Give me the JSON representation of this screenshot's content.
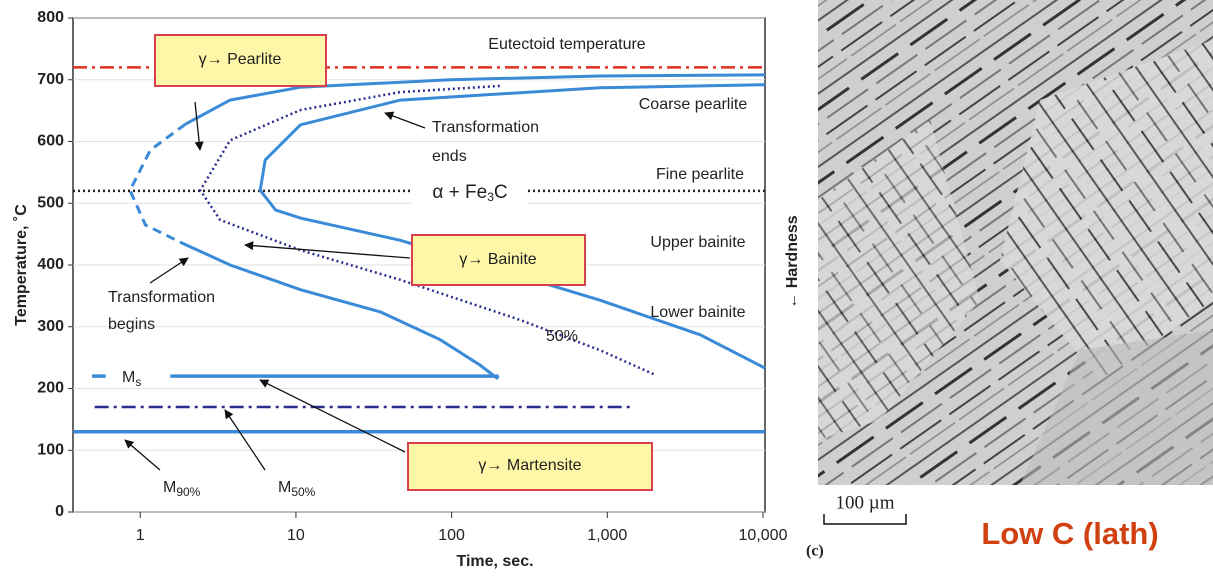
{
  "chart_data": {
    "type": "line",
    "x_log": true,
    "grid": true,
    "x_label": "Time, sec.",
    "y_label": "Temperature, ˚C",
    "xlim": [
      0.37,
      10300
    ],
    "ylim": [
      0,
      800
    ],
    "xticks": [
      1,
      10,
      100,
      {
        "value": 1000,
        "label": "1,000"
      },
      {
        "value": 10000,
        "label": "10,000"
      }
    ],
    "yticks": [
      0,
      100,
      200,
      300,
      400,
      500,
      600,
      700,
      800
    ],
    "series": [
      {
        "color": "#e03020",
        "style": "dashdot",
        "x": [
          0.37,
          10300
        ],
        "values": [
          720,
          720
        ]
      },
      {
        "color": "#222222",
        "style": "dotted",
        "x": [
          0.37,
          10300
        ],
        "values": [
          520,
          520
        ]
      },
      {
        "color": "#3a8ad8",
        "style": "solid",
        "x": [
          1.95,
          3.78,
          10.7,
          98,
          897,
          10300
        ],
        "values": [
          628,
          667,
          688,
          700,
          706,
          708
        ]
      },
      {
        "color": "#3a8ad8",
        "style": "dashed",
        "x": [
          1.95,
          1.16,
          0.86,
          1.08,
          1.81
        ],
        "values": [
          628,
          586,
          521,
          465,
          437
        ]
      },
      {
        "color": "#3a8ad8",
        "style": "solid",
        "x": [
          1.81,
          3.78,
          10.7,
          34.9,
          84.5,
          152,
          195,
          200
        ],
        "values": [
          437,
          400,
          360,
          324,
          279,
          238,
          217,
          220
        ]
      },
      {
        "color": "#3a8ad8",
        "style": "solid",
        "x": [
          10300,
          897,
          46.8,
          10.7,
          6.35,
          5.9,
          7.4,
          10.7,
          46.8,
          204,
          897,
          3950,
          10300
        ],
        "values": [
          692,
          687,
          667,
          627,
          570,
          521,
          489,
          476,
          440,
          392,
          343,
          287,
          233
        ]
      },
      {
        "color": "#2a2f8f",
        "style": "dotted",
        "x": [
          204,
          46.8,
          10.7,
          3.78,
          2.43,
          3.26,
          10.7,
          46.8,
          276,
          897,
          2030
        ],
        "values": [
          690,
          680,
          651,
          602,
          521,
          473,
          424,
          376,
          311,
          262,
          222
        ]
      },
      {
        "color": "#3a8ad8",
        "style": "thick",
        "x": [
          0.49,
          0.6
        ],
        "values": [
          220,
          220
        ]
      },
      {
        "color": "#3a8ad8",
        "style": "thick",
        "x": [
          1.56,
          200
        ],
        "values": [
          220,
          220
        ]
      },
      {
        "color": "#2a2f8f",
        "style": "dashdot",
        "x": [
          0.51,
          1500
        ],
        "values": [
          170,
          170
        ]
      },
      {
        "color": "#3a8ad8",
        "style": "thick",
        "x": [
          0.37,
          10300
        ],
        "values": [
          130,
          130
        ]
      }
    ],
    "annotations": [
      {
        "text": "Eutectoid temperature"
      },
      {
        "text": "Coarse pearlite"
      },
      {
        "text": "Fine pearlite"
      },
      {
        "text": "Upper bainite"
      },
      {
        "text": "Lower bainite"
      },
      {
        "text": "Transformation"
      },
      {
        "text": "ends"
      },
      {
        "text": "Transformation"
      },
      {
        "text": "begins"
      },
      {
        "text": "50%"
      },
      {
        "text": "α + Fe",
        "sub": "3",
        "tail": "C"
      },
      {
        "text": "M",
        "sub": "s"
      },
      {
        "text": "M",
        "sub": "90%"
      },
      {
        "text": "M",
        "sub": "50%"
      },
      {
        "text": "← Hardness"
      },
      {
        "text": "γ→ Pearlite",
        "boxed": true
      },
      {
        "text": "γ→ Bainite",
        "boxed": true
      },
      {
        "text": "γ→ Martensite",
        "boxed": true
      }
    ]
  },
  "micrograph": {
    "scale": "100 µm",
    "panel": "(c)",
    "caption": "Low C (lath)"
  }
}
